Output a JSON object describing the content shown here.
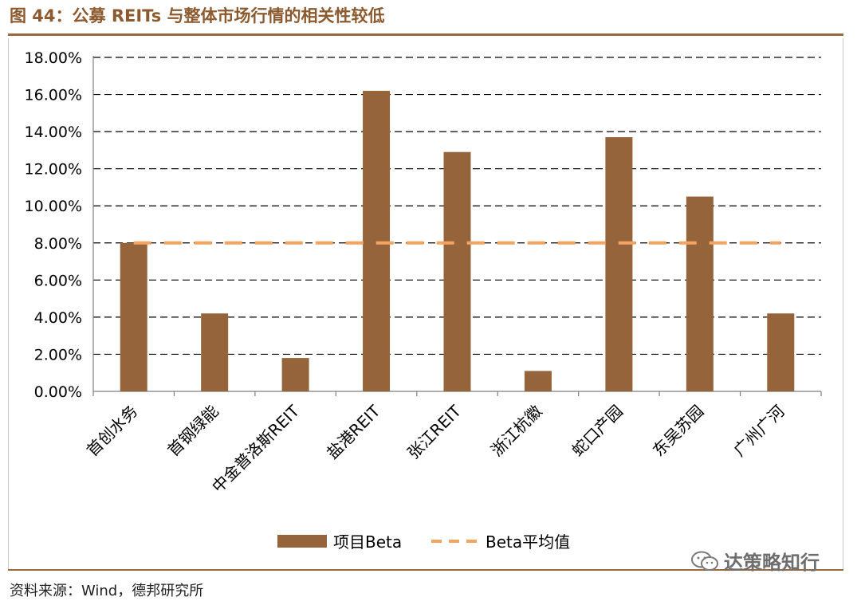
{
  "figure": {
    "title": "图 44：公募 REITs 与整体市场行情的相关性较低",
    "source": "资料来源：Wind，德邦研究所",
    "watermark": "达策略知行",
    "watermark_icon": "wechat-icon"
  },
  "colors": {
    "bar": "#96643a",
    "avg_line": "#f4a460",
    "title": "#8c5a2e",
    "rule": "#9a6a3f"
  },
  "chart_data": {
    "type": "bar",
    "categories": [
      "首创水务",
      "首钢绿能",
      "中金普洛斯REIT",
      "盐港REIT",
      "张江REIT",
      "浙江杭徽",
      "蛇口产园",
      "东吴苏园",
      "广州广河"
    ],
    "series": [
      {
        "name": "项目Beta",
        "type": "bar",
        "values": [
          8.0,
          4.2,
          1.8,
          16.2,
          12.9,
          1.1,
          13.7,
          10.5,
          4.2
        ]
      },
      {
        "name": "Beta平均值",
        "type": "line",
        "style": "dashed",
        "values": [
          8.0,
          8.0,
          8.0,
          8.0,
          8.0,
          8.0,
          8.0,
          8.0,
          8.0
        ]
      }
    ],
    "y_ticks": [
      "0.00%",
      "2.00%",
      "4.00%",
      "6.00%",
      "8.00%",
      "10.00%",
      "12.00%",
      "14.00%",
      "16.00%",
      "18.00%"
    ],
    "ylim": [
      0,
      18
    ],
    "y_unit": "%",
    "grid": true,
    "legend_position": "bottom"
  }
}
